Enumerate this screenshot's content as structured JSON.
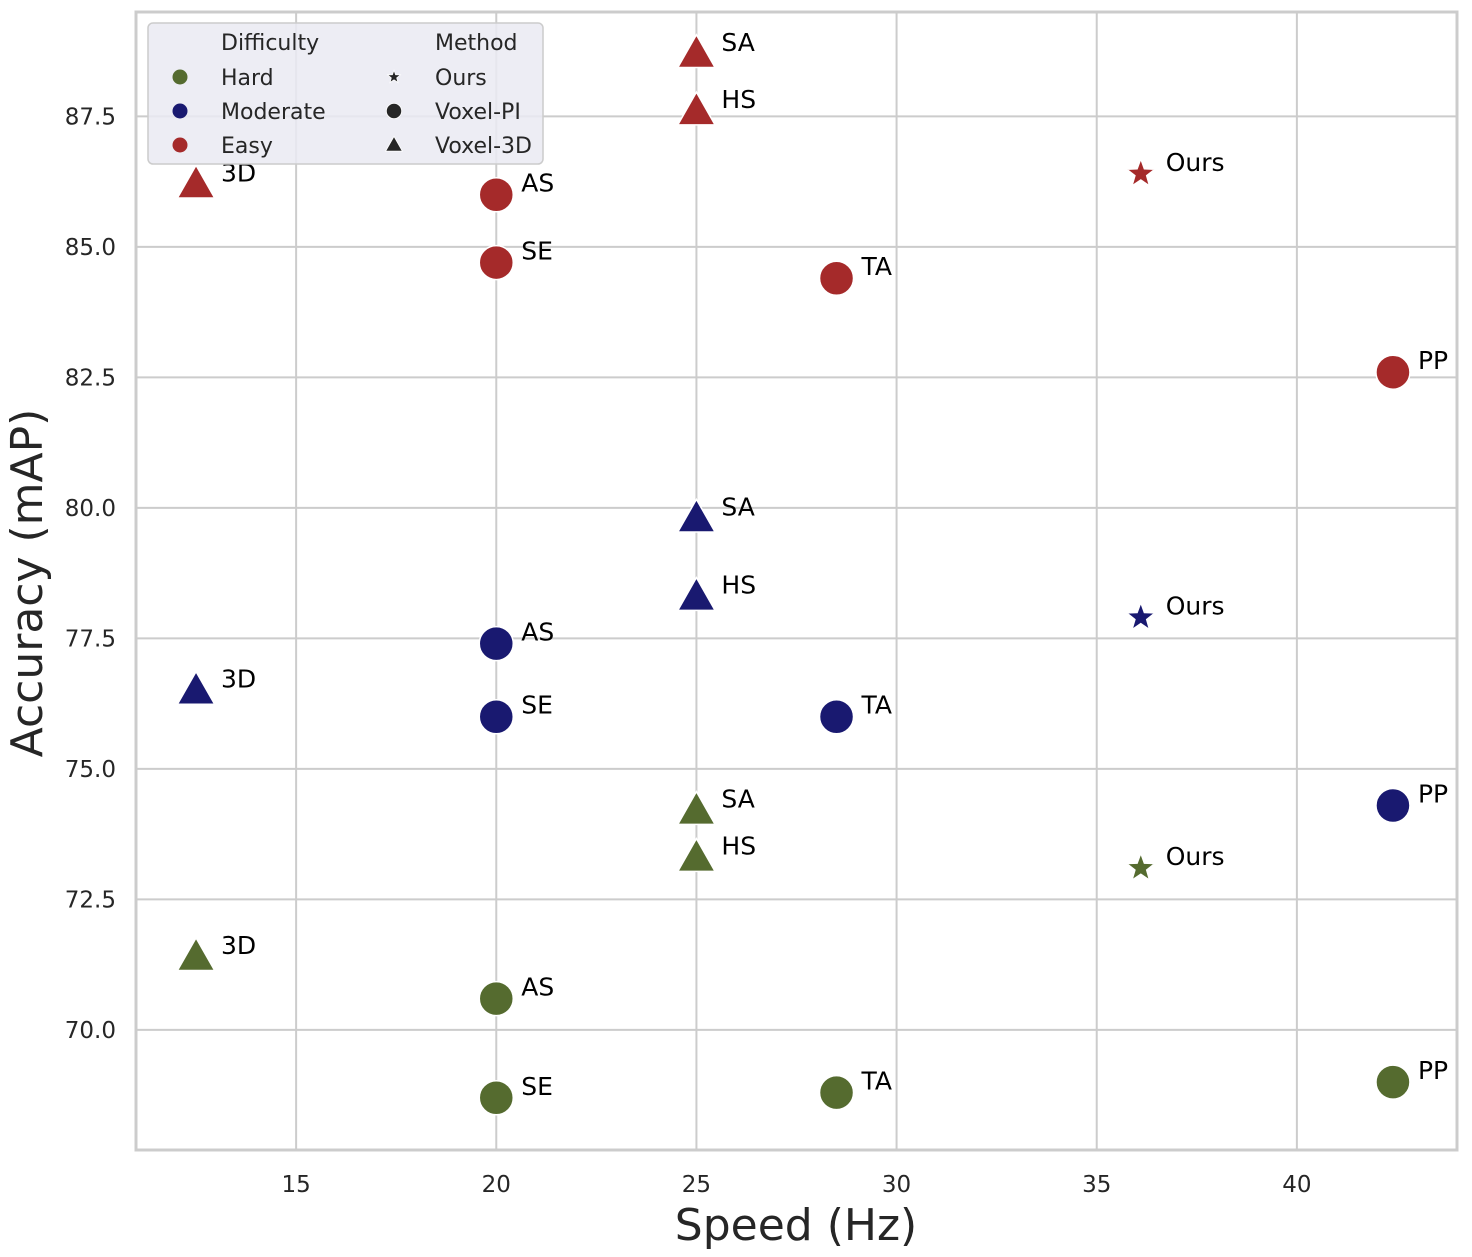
{
  "chart_data": {
    "type": "scatter",
    "xlabel": "Speed (Hz)",
    "ylabel": "Accuracy (mAP)",
    "xlim": [
      11,
      44
    ],
    "ylim": [
      67.7,
      89.5
    ],
    "x_ticks": [
      15,
      20,
      25,
      30,
      35,
      40
    ],
    "y_ticks": [
      70.0,
      72.5,
      75.0,
      77.5,
      80.0,
      82.5,
      85.0,
      87.5
    ],
    "x_tick_labels": [
      "15",
      "20",
      "25",
      "30",
      "35",
      "40"
    ],
    "y_tick_labels": [
      "70.0",
      "72.5",
      "75.0",
      "77.5",
      "80.0",
      "82.5",
      "85.0",
      "87.5"
    ],
    "grid": true,
    "legend_placement": "top-left",
    "legend": {
      "difficulty_title": "Difficulty",
      "difficulty": [
        {
          "name": "Hard",
          "color": "#556b2f"
        },
        {
          "name": "Moderate",
          "color": "#191970"
        },
        {
          "name": "Easy",
          "color": "#a52a2a"
        }
      ],
      "method_title": "Method",
      "methods": [
        {
          "name": "Ours",
          "marker": "star"
        },
        {
          "name": "Voxel-PI",
          "marker": "circle"
        },
        {
          "name": "Voxel-3D",
          "marker": "triangle"
        }
      ]
    },
    "series": [
      {
        "name": "Easy",
        "color": "#a52a2a",
        "points": [
          {
            "x": 12.5,
            "y": 86.2,
            "marker": "triangle",
            "label": "3D"
          },
          {
            "x": 20.0,
            "y": 86.0,
            "marker": "circle",
            "label": "AS"
          },
          {
            "x": 20.0,
            "y": 84.7,
            "marker": "circle",
            "label": "SE"
          },
          {
            "x": 25.0,
            "y": 88.7,
            "marker": "triangle",
            "label": "SA"
          },
          {
            "x": 25.0,
            "y": 87.6,
            "marker": "triangle",
            "label": "HS"
          },
          {
            "x": 28.5,
            "y": 84.4,
            "marker": "circle",
            "label": "TA"
          },
          {
            "x": 36.1,
            "y": 86.4,
            "marker": "star",
            "label": "Ours"
          },
          {
            "x": 42.4,
            "y": 82.6,
            "marker": "circle",
            "label": "PP"
          }
        ]
      },
      {
        "name": "Moderate",
        "color": "#191970",
        "points": [
          {
            "x": 12.5,
            "y": 76.5,
            "marker": "triangle",
            "label": "3D"
          },
          {
            "x": 20.0,
            "y": 77.4,
            "marker": "circle",
            "label": "AS"
          },
          {
            "x": 20.0,
            "y": 76.0,
            "marker": "circle",
            "label": "SE"
          },
          {
            "x": 25.0,
            "y": 79.8,
            "marker": "triangle",
            "label": "SA"
          },
          {
            "x": 25.0,
            "y": 78.3,
            "marker": "triangle",
            "label": "HS"
          },
          {
            "x": 28.5,
            "y": 76.0,
            "marker": "circle",
            "label": "TA"
          },
          {
            "x": 36.1,
            "y": 77.9,
            "marker": "star",
            "label": "Ours"
          },
          {
            "x": 42.4,
            "y": 74.3,
            "marker": "circle",
            "label": "PP"
          }
        ]
      },
      {
        "name": "Hard",
        "color": "#556b2f",
        "points": [
          {
            "x": 12.5,
            "y": 71.4,
            "marker": "triangle",
            "label": "3D"
          },
          {
            "x": 20.0,
            "y": 70.6,
            "marker": "circle",
            "label": "AS"
          },
          {
            "x": 20.0,
            "y": 68.7,
            "marker": "circle",
            "label": "SE"
          },
          {
            "x": 25.0,
            "y": 74.2,
            "marker": "triangle",
            "label": "SA"
          },
          {
            "x": 25.0,
            "y": 73.3,
            "marker": "triangle",
            "label": "HS"
          },
          {
            "x": 28.5,
            "y": 68.8,
            "marker": "circle",
            "label": "TA"
          },
          {
            "x": 36.1,
            "y": 73.1,
            "marker": "star",
            "label": "Ours"
          },
          {
            "x": 42.4,
            "y": 69.0,
            "marker": "circle",
            "label": "PP"
          }
        ]
      }
    ]
  }
}
